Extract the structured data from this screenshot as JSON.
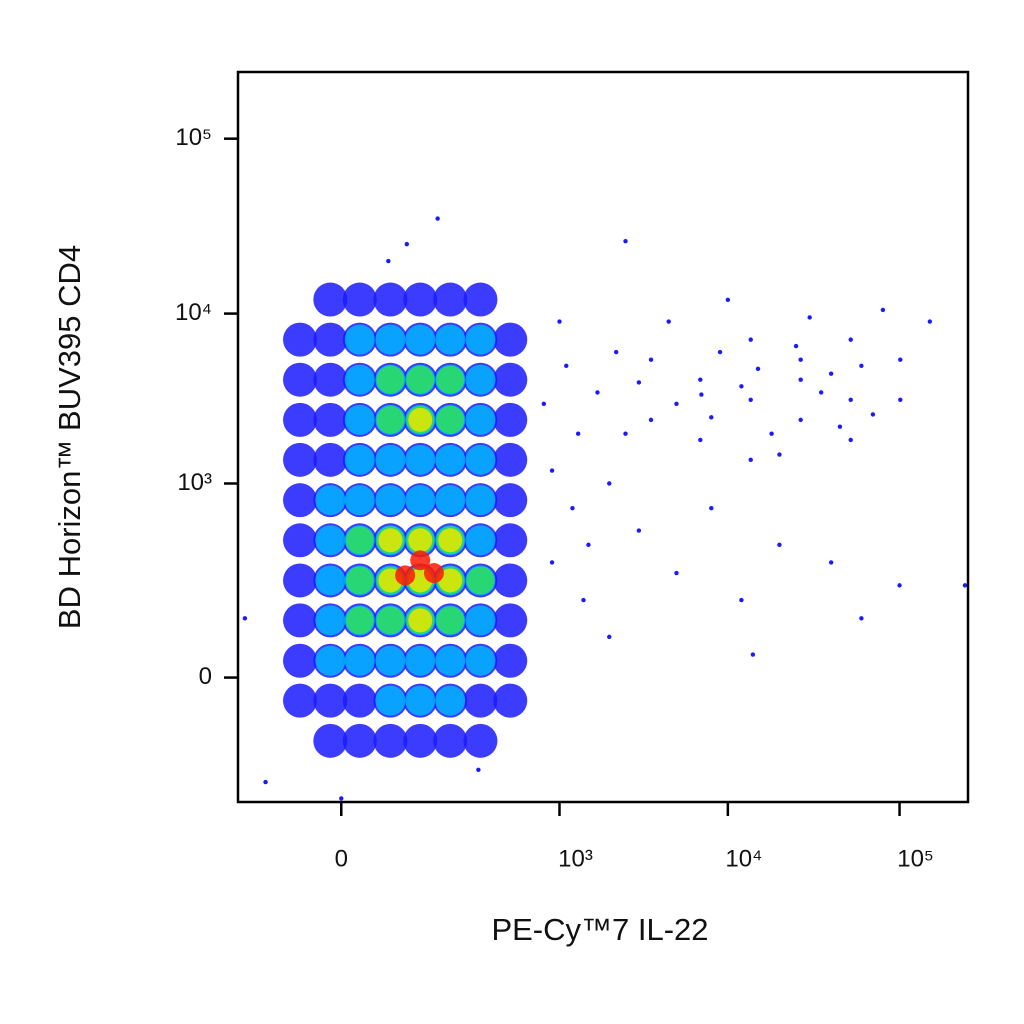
{
  "chart_data": {
    "type": "scatter",
    "x_label": "PE-Cy™7 IL-22",
    "y_label": "BD Horizon™ BUV395 CD4",
    "scale": "biexponential",
    "grid": false,
    "xlim": [
      -170,
      250000
    ],
    "ylim": [
      -350,
      240000
    ],
    "xticks": [
      0,
      {
        "value": 1000,
        "label": "10³"
      },
      {
        "value": 10000,
        "label": "10⁴"
      },
      {
        "value": 100000,
        "label": "10⁵"
      }
    ],
    "yticks": [
      0,
      {
        "value": 1000,
        "label": "10³"
      },
      {
        "value": 10000,
        "label": "10⁴"
      },
      {
        "value": 100000,
        "label": "10⁵"
      }
    ],
    "series": [
      {
        "color": "#1a1aff",
        "x": [
          -9,
          16,
          53,
          107,
          188,
          310,
          -42,
          -9,
          16,
          53,
          107,
          188,
          310,
          490,
          -42,
          -9,
          16,
          53,
          107,
          188,
          310,
          490,
          -42,
          -9,
          16,
          53,
          107,
          188,
          310,
          490,
          -42,
          -9,
          16,
          53,
          107,
          188,
          310,
          490,
          -42,
          -9,
          16,
          53,
          107,
          188,
          310,
          490,
          -42,
          -9,
          16,
          53,
          107,
          188,
          310,
          490,
          -42,
          -9,
          16,
          53,
          107,
          188,
          310,
          490,
          -42,
          -9,
          16,
          53,
          107,
          188,
          310,
          490,
          -42,
          -9,
          16,
          53,
          107,
          188,
          310,
          490,
          -42,
          -9,
          16,
          53,
          107,
          188,
          310,
          490,
          -9,
          16,
          53,
          107,
          188,
          310
        ],
        "y": [
          12040,
          12040,
          12040,
          12040,
          12040,
          12040,
          7080,
          7080,
          7080,
          7080,
          7080,
          7080,
          7080,
          7080,
          4150,
          4150,
          4150,
          4150,
          4150,
          4150,
          4150,
          4150,
          2415,
          2415,
          2415,
          2415,
          2415,
          2415,
          2415,
          2415,
          1395,
          1395,
          1395,
          1395,
          1395,
          1395,
          1395,
          1395,
          787,
          787,
          787,
          787,
          787,
          787,
          787,
          787,
          430,
          430,
          430,
          430,
          430,
          430,
          430,
          430,
          219,
          219,
          219,
          219,
          219,
          219,
          219,
          219,
          95,
          95,
          95,
          95,
          95,
          95,
          95,
          95,
          21,
          21,
          21,
          21,
          21,
          21,
          21,
          21,
          -30,
          -30,
          -30,
          -30,
          -30,
          -30,
          -30,
          -30,
          -110,
          -110,
          -110,
          -110,
          -110,
          -110
        ]
      },
      {
        "color": "#00b4ff",
        "x": [
          16,
          53,
          107,
          188,
          310,
          16,
          53,
          107,
          188,
          310,
          16,
          53,
          107,
          188,
          310,
          16,
          53,
          107,
          188,
          310,
          -9,
          16,
          53,
          107,
          188,
          310,
          -9,
          16,
          53,
          107,
          188,
          310,
          -9,
          16,
          53,
          107,
          188,
          310,
          -9,
          16,
          53,
          107,
          188,
          310,
          -9,
          16,
          53,
          107,
          188,
          310,
          53,
          107,
          188
        ],
        "y": [
          7080,
          7080,
          7080,
          7080,
          7080,
          4150,
          4150,
          4150,
          4150,
          4150,
          2415,
          2415,
          2415,
          2415,
          2415,
          1395,
          1395,
          1395,
          1395,
          1395,
          787,
          787,
          787,
          787,
          787,
          787,
          430,
          430,
          430,
          430,
          430,
          430,
          219,
          219,
          219,
          219,
          219,
          219,
          95,
          95,
          95,
          95,
          95,
          95,
          21,
          21,
          21,
          21,
          21,
          21,
          -30,
          -30,
          -30
        ]
      },
      {
        "color": "#2ee05a",
        "x": [
          53,
          107,
          188,
          53,
          107,
          188,
          16,
          53,
          107,
          188,
          16,
          53,
          107,
          188,
          16,
          53,
          107,
          188,
          310
        ],
        "y": [
          4150,
          4150,
          4150,
          2415,
          2415,
          2415,
          430,
          430,
          430,
          430,
          219,
          219,
          219,
          219,
          95,
          95,
          95,
          95,
          219
        ]
      },
      {
        "color": "#e8e800",
        "x": [
          53,
          107,
          188,
          53,
          107,
          188,
          107,
          107
        ],
        "y": [
          430,
          430,
          430,
          219,
          219,
          219,
          95,
          2415
        ]
      },
      {
        "color": "#ff1a00",
        "x": [
          107,
          77,
          140
        ],
        "y": [
          311,
          240,
          250
        ]
      },
      {
        "color": "#1a1aff",
        "x": [
          3540,
          3540,
          6900,
          6900,
          13600,
          13600,
          13600,
          26600,
          26600,
          26600,
          52000,
          52000,
          52000,
          101000,
          101000,
          5000,
          9000,
          18000,
          40000,
          70000,
          4500,
          10000,
          30000,
          80000,
          150000,
          20000,
          35000,
          60000,
          8000,
          15000,
          45000,
          25000,
          12000,
          7000,
          3000,
          2500,
          800,
          900,
          1100,
          1200,
          1300,
          1500,
          1700,
          2000,
          2200,
          1000,
          900,
          1400,
          3000,
          5000,
          8000,
          12000,
          20000,
          40000,
          60000,
          100000,
          14000,
          2000,
          240000,
          150,
          2500,
          80,
          50,
          -100,
          0,
          300,
          -150
        ],
        "y": [
          5420,
          2415,
          4150,
          1837,
          7080,
          3170,
          1395,
          5420,
          2415,
          4150,
          3170,
          7080,
          1837,
          5420,
          3170,
          3000,
          6000,
          2000,
          4500,
          2600,
          9000,
          12000,
          9500,
          10500,
          9000,
          1500,
          3500,
          5000,
          2500,
          4800,
          2200,
          6500,
          3800,
          3400,
          4000,
          2000,
          3000,
          1200,
          5000,
          700,
          2000,
          400,
          3500,
          1000,
          6000,
          9000,
          300,
          150,
          500,
          250,
          700,
          150,
          400,
          300,
          100,
          200,
          30,
          60,
          200,
          35000,
          26000,
          25000,
          20000,
          -250,
          -330,
          -200,
          100
        ]
      }
    ]
  }
}
